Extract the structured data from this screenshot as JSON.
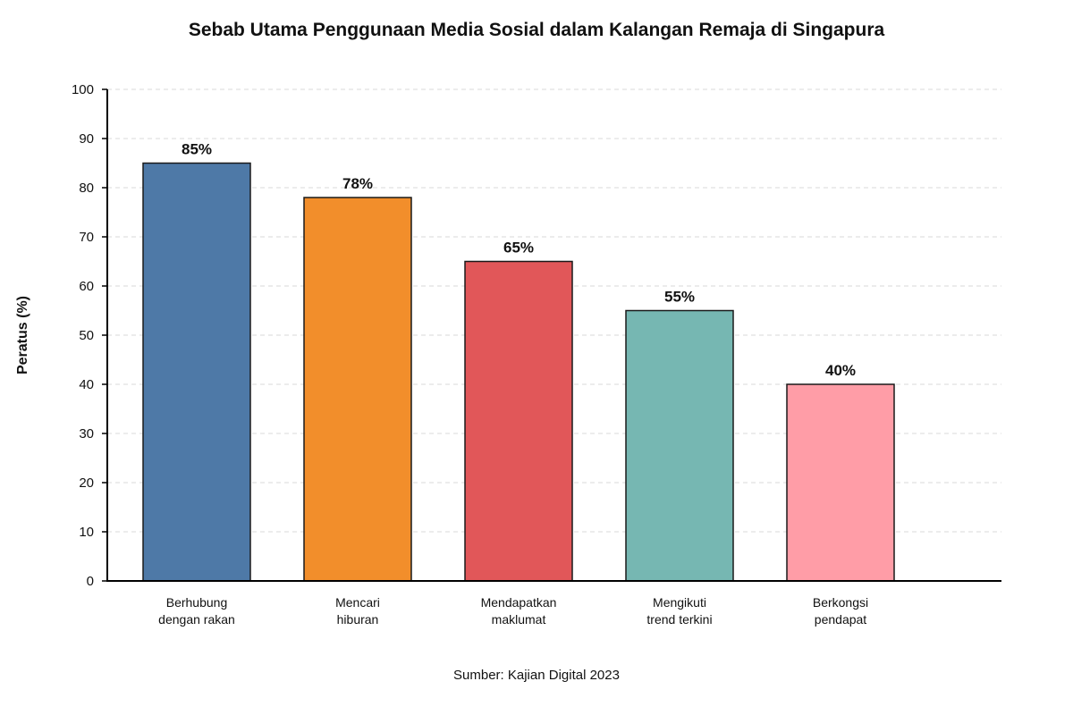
{
  "chart_data": {
    "type": "bar",
    "title": "Sebab Utama Penggunaan Media Sosial dalam Kalangan Remaja di Singapura",
    "xlabel": "",
    "ylabel": "Peratus (%)",
    "ylim": [
      0,
      100
    ],
    "yticks": [
      "0",
      "10",
      "20",
      "30",
      "40",
      "50",
      "60",
      "70",
      "80",
      "90",
      "100"
    ],
    "grid": true,
    "categories": [
      [
        "Berhubung",
        "dengan rakan"
      ],
      [
        "Mencari",
        "hiburan"
      ],
      [
        "Mendapatkan",
        "maklumat"
      ],
      [
        "Mengikuti",
        "trend terkini"
      ],
      [
        "Berkongsi",
        "pendapat"
      ]
    ],
    "values": [
      85,
      78,
      65,
      55,
      40
    ],
    "value_labels": [
      "85%",
      "78%",
      "65%",
      "55%",
      "40%"
    ],
    "colors": [
      "#4e79a7",
      "#f28e2b",
      "#e15759",
      "#76b7b2",
      "#ff9da7"
    ],
    "source": "Sumber: Kajian Digital 2023"
  }
}
